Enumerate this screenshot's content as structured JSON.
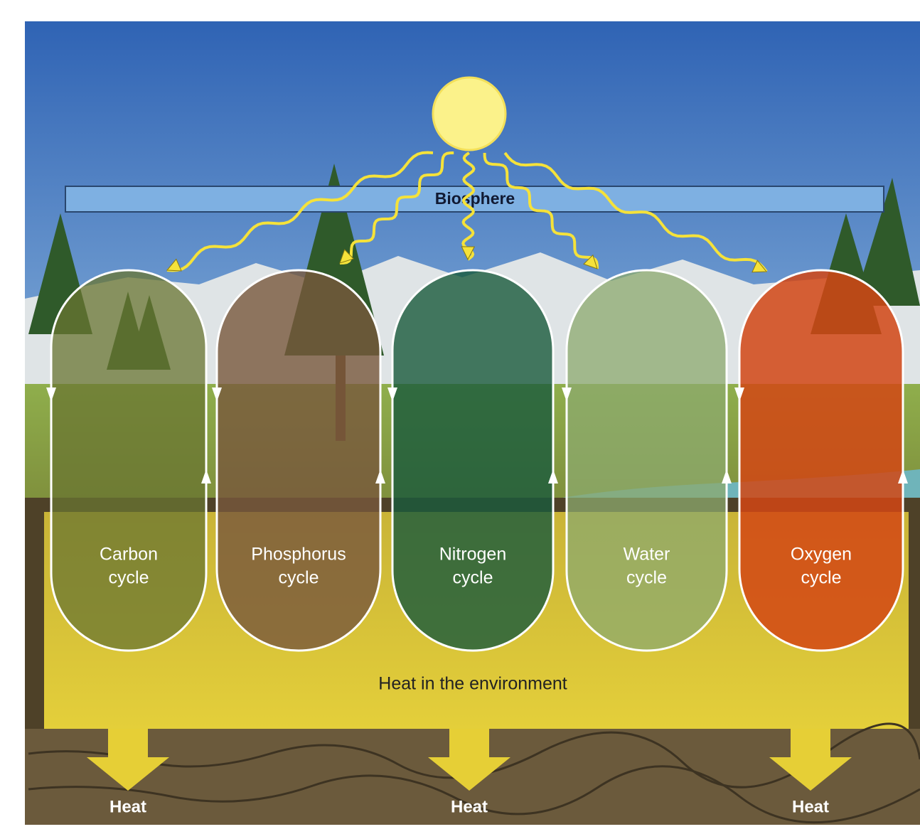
{
  "banner": {
    "label": "Biosphere"
  },
  "cycles": [
    {
      "lines": [
        "Carbon",
        "cycle"
      ]
    },
    {
      "lines": [
        "Phosphorus",
        "cycle"
      ]
    },
    {
      "lines": [
        "Nitrogen",
        "cycle"
      ]
    },
    {
      "lines": [
        "Water",
        "cycle"
      ]
    },
    {
      "lines": [
        "Oxygen",
        "cycle"
      ]
    }
  ],
  "environment_label": "Heat in the environment",
  "heat_outputs": [
    "Heat",
    "Heat",
    "Heat"
  ]
}
